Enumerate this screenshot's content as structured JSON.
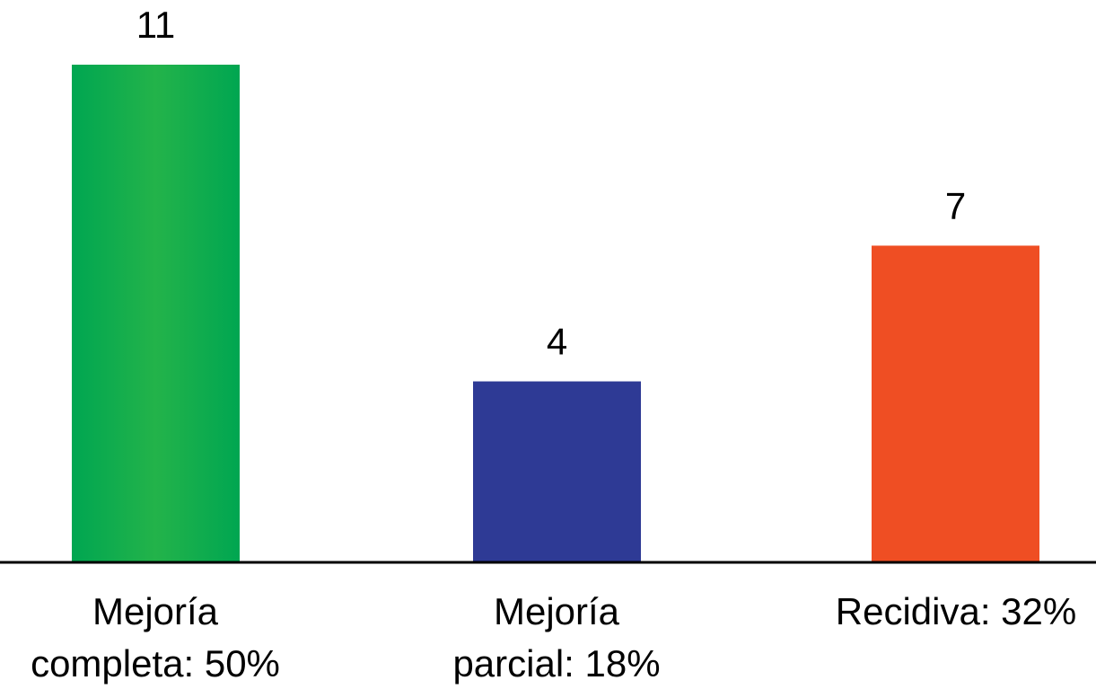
{
  "chart_data": {
    "type": "bar",
    "title": "",
    "xlabel": "",
    "ylabel": "",
    "ylim": [
      0,
      11
    ],
    "grid": false,
    "legend": "none",
    "categories": [
      [
        "Mejoría",
        "completa: 50%"
      ],
      [
        "Mejoría",
        "parcial: 18%"
      ],
      [
        "Recidiva: 32%"
      ]
    ],
    "values": [
      11,
      4,
      7
    ],
    "value_labels": [
      "11",
      "4",
      "7"
    ],
    "colors": [
      "#1bb04a",
      "#2e3a95",
      "#ef4e23"
    ],
    "gradient_colors": [
      [
        "#00a651",
        "#23b34a"
      ],
      [
        "#2e3a95",
        "#2e3a95"
      ],
      [
        "#ef4e23",
        "#ef4e23"
      ]
    ],
    "axis_color": "#000000"
  }
}
